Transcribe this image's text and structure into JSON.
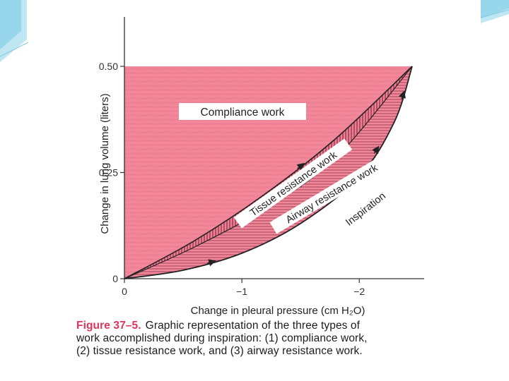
{
  "colors": {
    "fill": "#f2889a",
    "fill_dark": "#e46b82",
    "hatch": "#7a2a3a",
    "axis": "#333333",
    "curve": "#222222",
    "caption_label": "#e0345a",
    "deco_light": "#bfe6f3",
    "deco_mid": "#7fcbe4"
  },
  "chart_data": {
    "type": "area",
    "xlabel": "Change in pleural pressure (cm H₂O)",
    "ylabel": "Change in lung volume (liters)",
    "x_ticks": [
      {
        "value": 0,
        "label": "0"
      },
      {
        "value": -1,
        "label": "−1"
      },
      {
        "value": -2,
        "label": "−2"
      }
    ],
    "y_ticks": [
      {
        "value": 0,
        "label": "0"
      },
      {
        "value": 0.25,
        "label": "0.25"
      },
      {
        "value": 0.5,
        "label": "0.50"
      }
    ],
    "xlim": [
      0,
      -2.45
    ],
    "ylim": [
      0,
      0.5
    ],
    "end_point": {
      "x": -2.45,
      "y": 0.5
    },
    "regions": [
      {
        "name": "compliance",
        "label": "Compliance work"
      },
      {
        "name": "tissue",
        "label": "Tissue resistance work"
      },
      {
        "name": "airway",
        "label": "Airway resistance work"
      }
    ],
    "curve_label": "Inspiration",
    "curves": {
      "tissue_boundary": [
        [
          0,
          0
        ],
        [
          -0.6,
          0.09
        ],
        [
          -1.2,
          0.2
        ],
        [
          -1.8,
          0.33
        ],
        [
          -2.45,
          0.5
        ]
      ],
      "airway_boundary": [
        [
          0,
          0
        ],
        [
          -0.6,
          0.075
        ],
        [
          -1.2,
          0.165
        ],
        [
          -1.8,
          0.285
        ],
        [
          -2.45,
          0.5
        ]
      ],
      "inspiration": [
        [
          0,
          0
        ],
        [
          -0.5,
          0.02
        ],
        [
          -1.0,
          0.06
        ],
        [
          -1.5,
          0.13
        ],
        [
          -2.0,
          0.24
        ],
        [
          -2.3,
          0.37
        ],
        [
          -2.45,
          0.5
        ]
      ]
    }
  },
  "caption": {
    "fig_label": "Figure 37–5.",
    "line1": "Graphic representation of the three types of",
    "line2": "work accomplished during inspiration: (1) compliance work,",
    "line3": "(2) tissue resistance work, and (3) airway resistance work."
  }
}
